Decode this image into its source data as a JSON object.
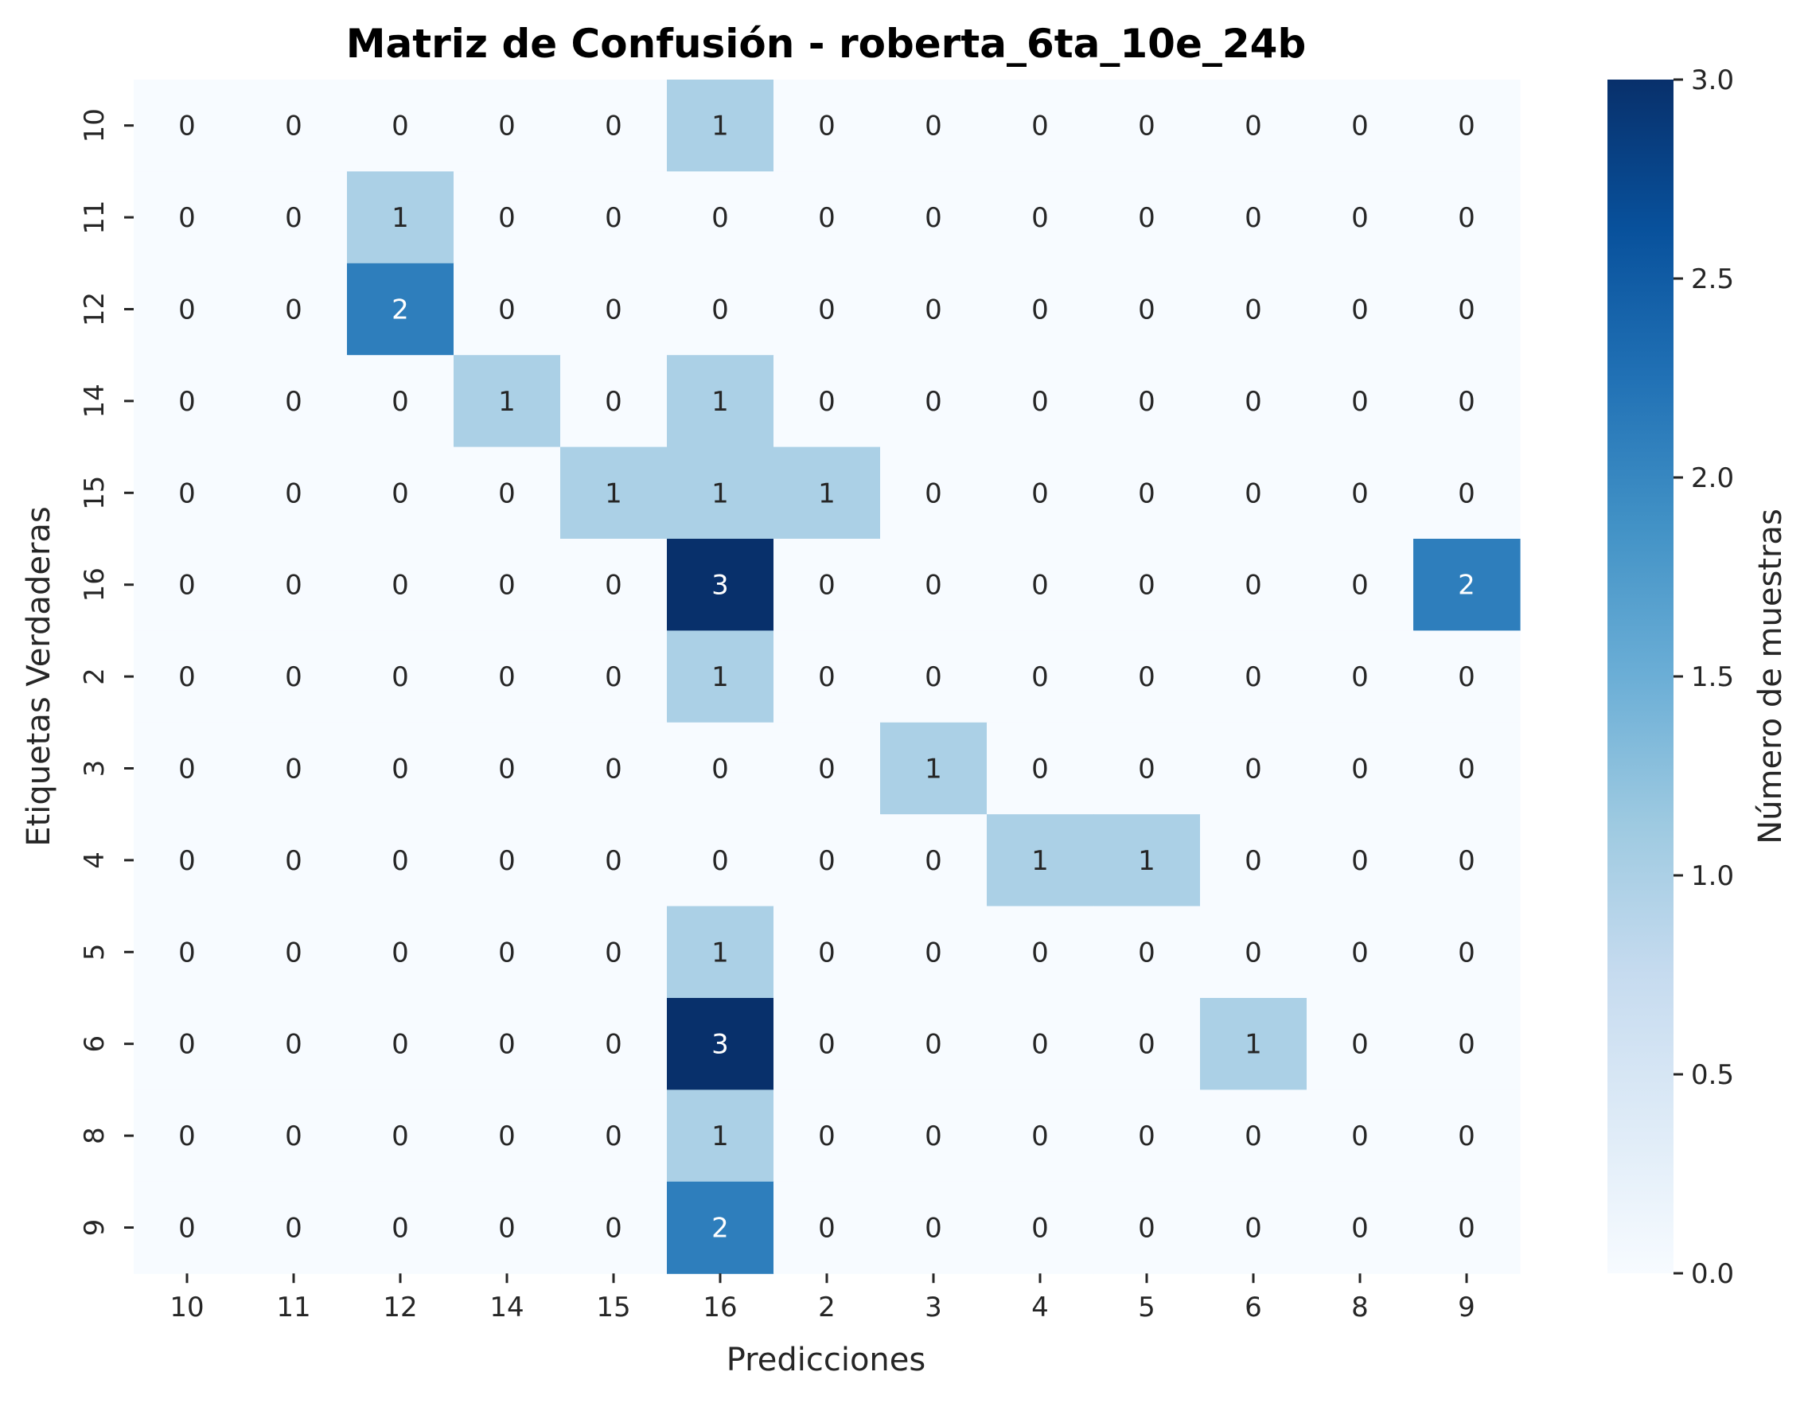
{
  "chart_data": {
    "type": "heatmap",
    "title": "Matriz de Confusión - roberta_6ta_10e_24b",
    "xlabel": "Predicciones",
    "ylabel": "Etiquetas Verdaderas",
    "x_categories": [
      "10",
      "11",
      "12",
      "14",
      "15",
      "16",
      "2",
      "3",
      "4",
      "5",
      "6",
      "8",
      "9"
    ],
    "y_categories": [
      "10",
      "11",
      "12",
      "14",
      "15",
      "16",
      "2",
      "3",
      "4",
      "5",
      "6",
      "8",
      "9"
    ],
    "values": [
      [
        0,
        0,
        0,
        0,
        0,
        1,
        0,
        0,
        0,
        0,
        0,
        0,
        0
      ],
      [
        0,
        0,
        1,
        0,
        0,
        0,
        0,
        0,
        0,
        0,
        0,
        0,
        0
      ],
      [
        0,
        0,
        2,
        0,
        0,
        0,
        0,
        0,
        0,
        0,
        0,
        0,
        0
      ],
      [
        0,
        0,
        0,
        1,
        0,
        1,
        0,
        0,
        0,
        0,
        0,
        0,
        0
      ],
      [
        0,
        0,
        0,
        0,
        1,
        1,
        1,
        0,
        0,
        0,
        0,
        0,
        0
      ],
      [
        0,
        0,
        0,
        0,
        0,
        3,
        0,
        0,
        0,
        0,
        0,
        0,
        2
      ],
      [
        0,
        0,
        0,
        0,
        0,
        1,
        0,
        0,
        0,
        0,
        0,
        0,
        0
      ],
      [
        0,
        0,
        0,
        0,
        0,
        0,
        0,
        1,
        0,
        0,
        0,
        0,
        0
      ],
      [
        0,
        0,
        0,
        0,
        0,
        0,
        0,
        0,
        1,
        1,
        0,
        0,
        0
      ],
      [
        0,
        0,
        0,
        0,
        0,
        1,
        0,
        0,
        0,
        0,
        0,
        0,
        0
      ],
      [
        0,
        0,
        0,
        0,
        0,
        3,
        0,
        0,
        0,
        0,
        1,
        0,
        0
      ],
      [
        0,
        0,
        0,
        0,
        0,
        1,
        0,
        0,
        0,
        0,
        0,
        0,
        0
      ],
      [
        0,
        0,
        0,
        0,
        0,
        2,
        0,
        0,
        0,
        0,
        0,
        0,
        0
      ]
    ],
    "colormap": "Blues",
    "vmin": 0,
    "vmax": 3,
    "colorbar": {
      "label": "Número de muestras",
      "ticks": [
        "0.0",
        "0.5",
        "1.0",
        "1.5",
        "2.0",
        "2.5",
        "3.0"
      ]
    },
    "colors": {
      "zero": "#f7fbff",
      "one": "#abd0e6",
      "two": "#2e7ebc",
      "three": "#08306b",
      "text_dark": "#262626",
      "text_light": "#ffffff"
    }
  }
}
